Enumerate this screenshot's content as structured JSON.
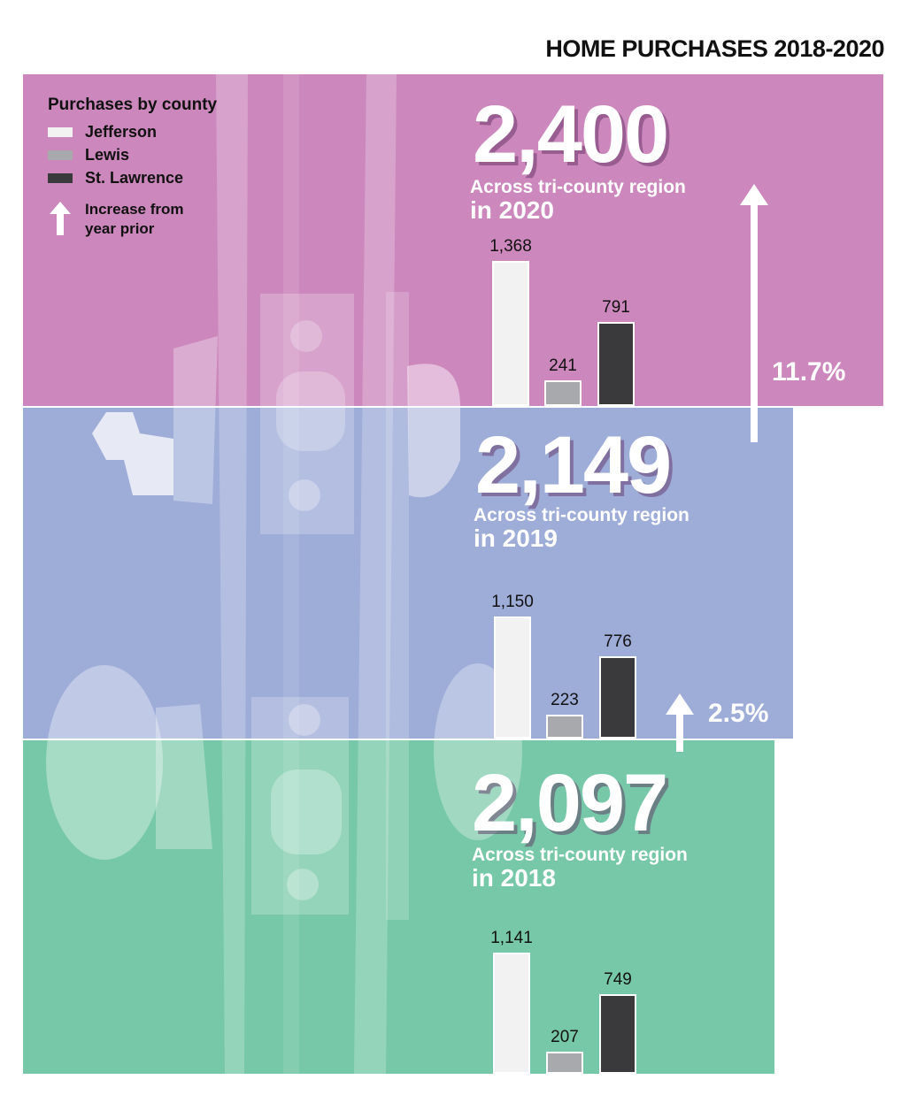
{
  "title": "HOME PURCHASES 2018-2020",
  "legend": {
    "title": "Purchases by county",
    "items": [
      {
        "label": "Jefferson",
        "color": "#f2f2f2"
      },
      {
        "label": "Lewis",
        "color": "#a7a9ac"
      },
      {
        "label": "St. Lawrence",
        "color": "#3a3a3d"
      }
    ],
    "arrow_note_line1": "Increase from",
    "arrow_note_line2": "year prior"
  },
  "colors": {
    "band_2020": "#cc88bd",
    "band_2019": "#9eacd8",
    "band_2018": "#77c8a8",
    "text": "#ffffff"
  },
  "chart_data": {
    "type": "bar",
    "title": "HOME PURCHASES 2018-2020",
    "categories": [
      "Jefferson",
      "Lewis",
      "St. Lawrence"
    ],
    "years": [
      {
        "year_label": "in 2020",
        "total": "2,400",
        "subtitle": "Across tri-county region",
        "values": [
          1368,
          241,
          791
        ],
        "value_labels": [
          "1,368",
          "241",
          "791"
        ],
        "increase": "11.7%"
      },
      {
        "year_label": "in 2019",
        "total": "2,149",
        "subtitle": "Across tri-county region",
        "values": [
          1150,
          223,
          776
        ],
        "value_labels": [
          "1,150",
          "223",
          "776"
        ],
        "increase": "2.5%"
      },
      {
        "year_label": "in 2018",
        "total": "2,097",
        "subtitle": "Across tri-county region",
        "values": [
          1141,
          207,
          749
        ],
        "value_labels": [
          "1,141",
          "207",
          "749"
        ]
      }
    ]
  }
}
